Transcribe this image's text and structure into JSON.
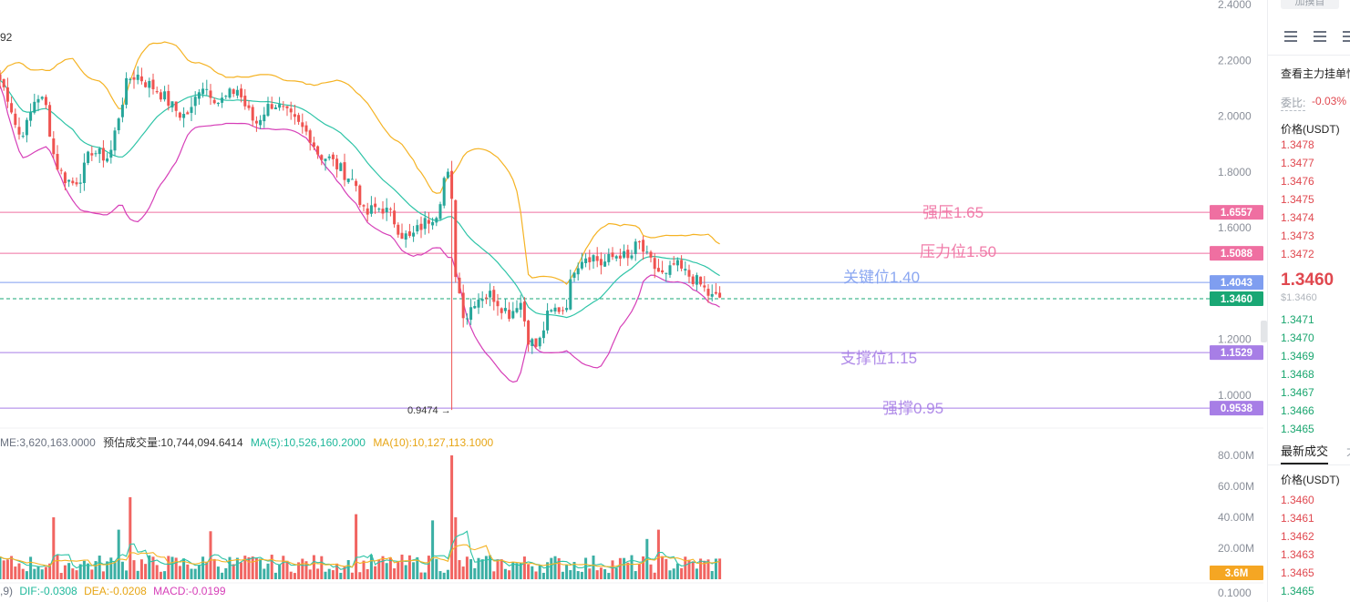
{
  "colors": {
    "up": "#26a69a",
    "down": "#ef5350",
    "boll_upper": "#f5b324",
    "boll_mid": "#2ec4a7",
    "boll_lower": "#d63fb8",
    "level_pink": "#ef6fa1",
    "level_blue": "#7f9ef0",
    "level_purple": "#a77ee6",
    "current_green": "#19a774",
    "vol_ma5": "#2ec4a7",
    "vol_ma10": "#f5b324",
    "vol_badge": "#f5a623"
  },
  "price_axis": {
    "ticks": [
      "2.4000",
      "2.2000",
      "2.0000",
      "1.8000",
      "1.6000",
      "1.2000",
      "1.0000"
    ]
  },
  "volume_axis": {
    "ticks": [
      "80.00M",
      "60.00M",
      "40.00M",
      "20.00M"
    ]
  },
  "macd_axis": {
    "ticks": [
      "0.1000"
    ]
  },
  "header_fragment": "92",
  "levels": [
    {
      "id": "strong-resistance",
      "label": "强压1.65",
      "badge": "1.6557",
      "value": 1.6557,
      "color": "#ef6fa1"
    },
    {
      "id": "resistance",
      "label": "压力位1.50",
      "badge": "1.5088",
      "value": 1.5088,
      "color": "#ef6fa1"
    },
    {
      "id": "key",
      "label": "关键位1.40",
      "badge": "1.4043",
      "value": 1.4043,
      "color": "#7f9ef0"
    },
    {
      "id": "support",
      "label": "支撑位1.15",
      "badge": "1.1529",
      "value": 1.1529,
      "color": "#a77ee6"
    },
    {
      "id": "strong-support",
      "label": "强撑0.95",
      "badge": "0.9538",
      "value": 0.9538,
      "color": "#a77ee6"
    }
  ],
  "current_price": {
    "badge": "1.3460",
    "value": 1.346
  },
  "low_marker": {
    "label": "0.9474 →",
    "value": 0.9474
  },
  "volume_info": {
    "volume": "ME:3,620,163.0000",
    "estimate": "预估成交量:10,744,094.6414",
    "ma5": "MA(5):10,526,160.2000",
    "ma10": "MA(10):10,127,113.1000"
  },
  "volume_badge": "3.6M",
  "macd_info": {
    "prefix": ",9)",
    "dif": "DIF:-0.0308",
    "dea": "DEA:-0.0208",
    "macd": "MACD:-0.0199"
  },
  "sidebar": {
    "top_button": "加摸首",
    "depth_title": "查看主力挂单情",
    "ratio_label": "委比:",
    "ratio_value": "-0.03%",
    "price_header": "价格(USDT)",
    "asks": [
      "1.3478",
      "1.3477",
      "1.3476",
      "1.3475",
      "1.3474",
      "1.3473",
      "1.3472"
    ],
    "last_price": "1.3460",
    "last_price_usd": "$1.3460",
    "bids": [
      "1.3471",
      "1.3470",
      "1.3469",
      "1.3468",
      "1.3467",
      "1.3466",
      "1.3465"
    ],
    "trades_tab": "最新成交",
    "trades_tab2": "大",
    "trades_header": "价格(USDT)",
    "trades": [
      "1.3460",
      "1.3461",
      "1.3462",
      "1.3463",
      "1.3465",
      "1.3465"
    ]
  },
  "chart_data": {
    "type": "candlestick",
    "price_range": [
      0.88,
      2.4
    ],
    "volume_range": [
      0,
      95
    ],
    "anchors": [
      [
        0,
        2.13
      ],
      [
        10,
        2.06
      ],
      [
        20,
        1.93
      ],
      [
        30,
        1.97
      ],
      [
        40,
        2.08
      ],
      [
        50,
        2.04
      ],
      [
        60,
        1.84
      ],
      [
        70,
        1.78
      ],
      [
        80,
        1.76
      ],
      [
        90,
        1.79
      ],
      [
        100,
        1.88
      ],
      [
        110,
        1.86
      ],
      [
        120,
        1.85
      ],
      [
        130,
        2.0
      ],
      [
        140,
        2.13
      ],
      [
        150,
        2.15
      ],
      [
        160,
        2.12
      ],
      [
        170,
        2.1
      ],
      [
        180,
        2.07
      ],
      [
        190,
        2.03
      ],
      [
        200,
        2.0
      ],
      [
        210,
        2.02
      ],
      [
        220,
        2.12
      ],
      [
        230,
        2.09
      ],
      [
        240,
        2.05
      ],
      [
        250,
        2.07
      ],
      [
        260,
        2.1
      ],
      [
        270,
        2.03
      ],
      [
        280,
        1.97
      ],
      [
        290,
        2.02
      ],
      [
        300,
        2.05
      ],
      [
        310,
        2.02
      ],
      [
        320,
        1.99
      ],
      [
        330,
        1.96
      ],
      [
        340,
        1.93
      ],
      [
        350,
        1.86
      ],
      [
        360,
        1.85
      ],
      [
        370,
        1.82
      ],
      [
        380,
        1.79
      ],
      [
        390,
        1.76
      ],
      [
        400,
        1.64
      ],
      [
        410,
        1.67
      ],
      [
        420,
        1.67
      ],
      [
        430,
        1.64
      ],
      [
        440,
        1.58
      ],
      [
        450,
        1.56
      ],
      [
        460,
        1.6
      ],
      [
        470,
        1.63
      ],
      [
        480,
        1.66
      ],
      [
        488,
        1.79
      ],
      [
        494,
        1.78
      ],
      [
        500,
        1.43
      ],
      [
        510,
        1.27
      ],
      [
        520,
        1.34
      ],
      [
        530,
        1.36
      ],
      [
        540,
        1.36
      ],
      [
        550,
        1.32
      ],
      [
        560,
        1.29
      ],
      [
        570,
        1.35
      ],
      [
        580,
        1.2
      ],
      [
        590,
        1.17
      ],
      [
        600,
        1.28
      ],
      [
        610,
        1.31
      ],
      [
        620,
        1.31
      ],
      [
        630,
        1.46
      ],
      [
        640,
        1.5
      ],
      [
        650,
        1.5
      ],
      [
        660,
        1.47
      ],
      [
        670,
        1.49
      ],
      [
        680,
        1.51
      ],
      [
        690,
        1.48
      ],
      [
        700,
        1.55
      ],
      [
        710,
        1.49
      ],
      [
        720,
        1.45
      ],
      [
        730,
        1.42
      ],
      [
        740,
        1.47
      ],
      [
        750,
        1.44
      ],
      [
        760,
        1.42
      ],
      [
        770,
        1.39
      ],
      [
        780,
        1.35
      ],
      [
        790,
        1.35
      ]
    ],
    "volume_spikes": [
      [
        142,
        53
      ],
      [
        497,
        80
      ],
      [
        392,
        42
      ],
      [
        475,
        38
      ],
      [
        500,
        40
      ],
      [
        722,
        32
      ],
      [
        60,
        40
      ],
      [
        130,
        32
      ],
      [
        232,
        31
      ],
      [
        710,
        26
      ]
    ]
  }
}
